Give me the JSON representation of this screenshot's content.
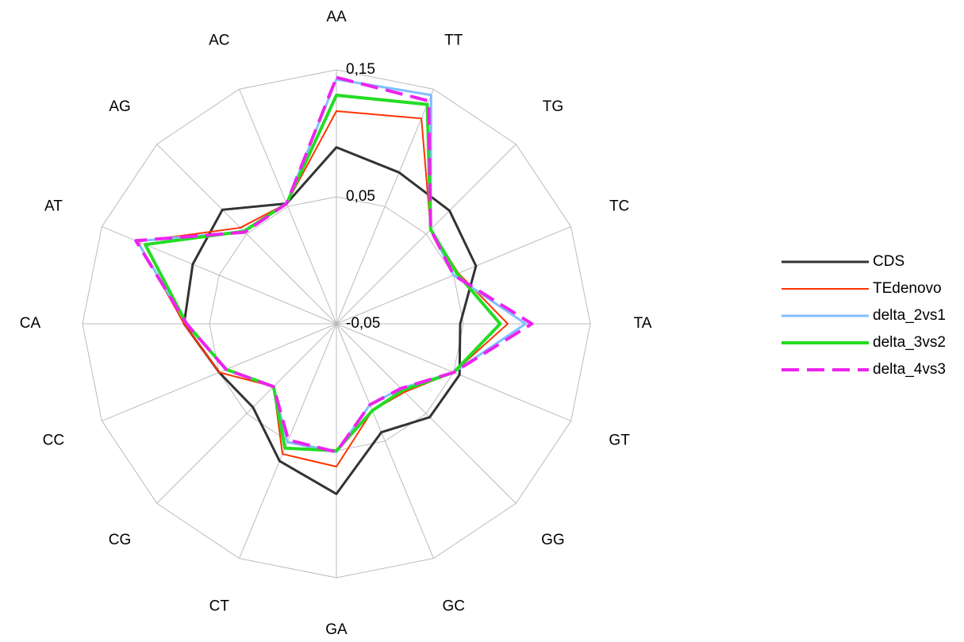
{
  "chart_data": {
    "type": "radar",
    "categories": [
      "AA",
      "TT",
      "TG",
      "TC",
      "TA",
      "GT",
      "GG",
      "GC",
      "GA",
      "CT",
      "CG",
      "CC",
      "CA",
      "AT",
      "AG",
      "AC"
    ],
    "ylim": [
      -0.05,
      0.15
    ],
    "yticks": [
      {
        "value": -0.05,
        "label": "-0,05"
      },
      {
        "value": 0.05,
        "label": "0,05"
      },
      {
        "value": 0.15,
        "label": "0,15"
      }
    ],
    "grid": true,
    "legend": "right",
    "series": [
      {
        "name": "CDS",
        "color": "#333333",
        "values": [
          0.089,
          0.079,
          0.076,
          0.069,
          0.0475,
          0.055,
          0.054,
          0.0425,
          0.084,
          0.067,
          0.043,
          0.05,
          0.07,
          0.0725,
          0.077,
          0.0525
        ]
      },
      {
        "name": "TEdenovo",
        "color": "#ff3300",
        "values": [
          0.1175,
          0.125,
          0.055,
          0.054,
          0.085,
          0.05,
          0.026,
          0.024,
          0.0625,
          0.061,
          0.02,
          0.05,
          0.07,
          0.119,
          0.057,
          0.0525
        ]
      },
      {
        "name": "delta_2vs1",
        "color": "#7fbfff",
        "values": [
          0.1425,
          0.145,
          0.055,
          0.05,
          0.099,
          0.05,
          0.022,
          0.019,
          0.051,
          0.051,
          0.02,
          0.044,
          0.068,
          0.12,
          0.0525,
          0.0525
        ]
      },
      {
        "name": "delta_3vs2",
        "color": "#22dd22",
        "values": [
          0.13,
          0.137,
          0.055,
          0.053,
          0.079,
          0.05,
          0.024,
          0.024,
          0.05,
          0.056,
          0.02,
          0.044,
          0.068,
          0.113,
          0.053,
          0.0525
        ]
      },
      {
        "name": "delta_4vs3",
        "color": "#ee22ee",
        "dashed": true,
        "values": [
          0.144,
          0.14,
          0.055,
          0.05,
          0.104,
          0.05,
          0.022,
          0.019,
          0.051,
          0.049,
          0.02,
          0.044,
          0.068,
          0.121,
          0.052,
          0.0525
        ]
      }
    ]
  }
}
